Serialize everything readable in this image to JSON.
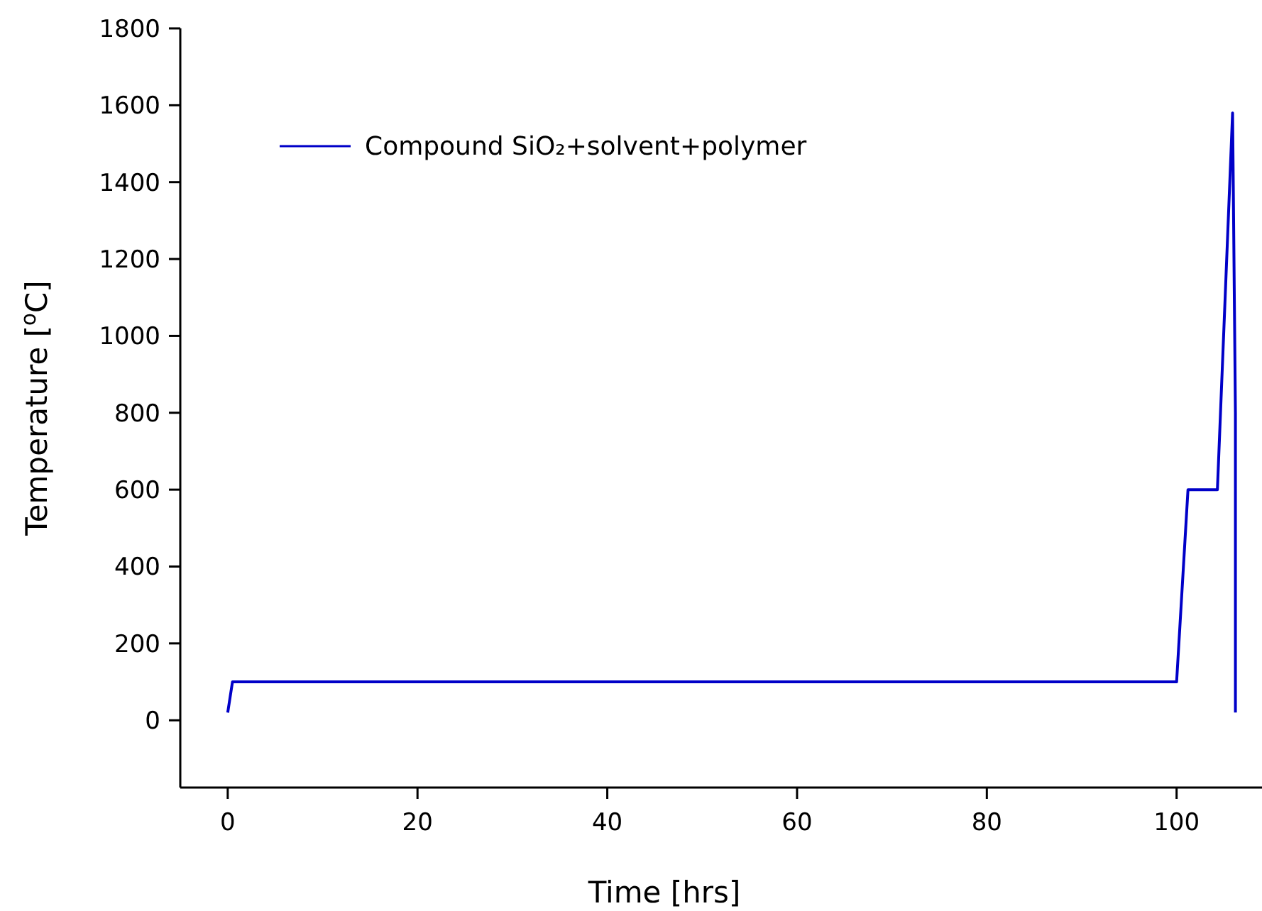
{
  "chart_data": {
    "type": "line",
    "xlabel": "Time [hrs]",
    "ylabel": "Temperature [$^{o}$C]",
    "x": [
      0,
      0.5,
      100,
      101.2,
      104.3,
      105.9,
      106.2,
      106.2
    ],
    "series": [
      {
        "name": "Compound SiO₂+solvent+polymer",
        "color": "#0000c8",
        "values": [
          20,
          100,
          100,
          600,
          600,
          1580,
          800,
          20
        ]
      }
    ],
    "xlim": [
      -5,
      109
    ],
    "xticks": [
      0,
      20,
      40,
      60,
      80,
      100
    ],
    "ylim": [
      -175,
      1800
    ],
    "yticks": [
      0,
      200,
      400,
      600,
      800,
      1000,
      1200,
      1400,
      1600,
      1800
    ],
    "grid": false,
    "legend": "top left",
    "marker": "none",
    "line_style": "solid"
  }
}
